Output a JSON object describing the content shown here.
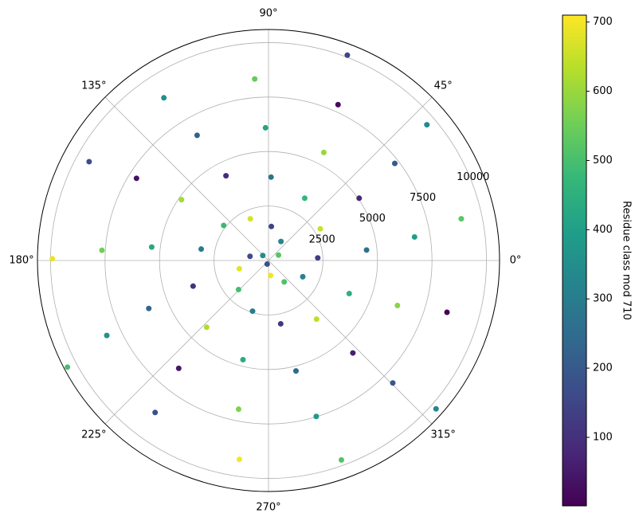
{
  "chart_data": {
    "type": "polar-scatter",
    "theta_unit": "radians",
    "theta": [
      174,
      348,
      522,
      696,
      870,
      1044,
      1218,
      1392,
      1566,
      1740,
      1914,
      2088,
      2262,
      2436,
      2610,
      2784,
      2958,
      3132,
      3306,
      3480,
      3654,
      3828,
      4002,
      4176,
      4350,
      4524,
      4698,
      4872,
      5046,
      5220,
      5394,
      5568,
      5742,
      5916,
      6090,
      6264,
      6438,
      6612,
      6786,
      6960,
      7134,
      7308,
      7482,
      7656,
      7830,
      8004,
      8178,
      8352,
      8526,
      8700,
      8874,
      9048,
      9222,
      9396,
      9570,
      9744,
      9918,
      10092,
      10266,
      10440
    ],
    "values": [
      174,
      348,
      522,
      696,
      870,
      1044,
      1218,
      1392,
      1566,
      1740,
      1914,
      2088,
      2262,
      2436,
      2610,
      2784,
      2958,
      3132,
      3306,
      3480,
      3654,
      3828,
      4002,
      4176,
      4350,
      4524,
      4698,
      4872,
      5046,
      5220,
      5394,
      5568,
      5742,
      5916,
      6090,
      6264,
      6438,
      6612,
      6786,
      6960,
      7134,
      7308,
      7482,
      7656,
      7830,
      8004,
      8178,
      8352,
      8526,
      8700,
      8874,
      9048,
      9222,
      9396,
      9570,
      9744,
      9918,
      10092,
      10266,
      10440
    ],
    "color_values": [
      174,
      348,
      522,
      696,
      160,
      334,
      508,
      682,
      146,
      320,
      494,
      668,
      132,
      306,
      480,
      654,
      118,
      292,
      466,
      640,
      104,
      278,
      452,
      626,
      90,
      264,
      438,
      612,
      76,
      250,
      424,
      598,
      62,
      236,
      410,
      584,
      48,
      222,
      396,
      570,
      34,
      208,
      382,
      556,
      20,
      194,
      368,
      542,
      6,
      180,
      354,
      528,
      702,
      166,
      340,
      514,
      688,
      152,
      326,
      500
    ],
    "ylim": [
      0,
      10600
    ],
    "yticks": [
      2500,
      5000,
      7500,
      10000
    ],
    "xticks": [
      {
        "value": 0,
        "label": "0°"
      },
      {
        "value": 45,
        "label": "45°"
      },
      {
        "value": 90,
        "label": "90°"
      },
      {
        "value": 135,
        "label": "135°"
      },
      {
        "value": 180,
        "label": "180°"
      },
      {
        "value": 225,
        "label": "225°"
      },
      {
        "value": 270,
        "label": "270°"
      },
      {
        "value": 315,
        "label": "315°"
      }
    ],
    "grid": true,
    "colormap": "viridis",
    "colorbar": {
      "label": "Residue class mod 710",
      "clim": [
        1,
        710
      ],
      "ticks": [
        100,
        200,
        300,
        400,
        500,
        600,
        700
      ]
    }
  }
}
